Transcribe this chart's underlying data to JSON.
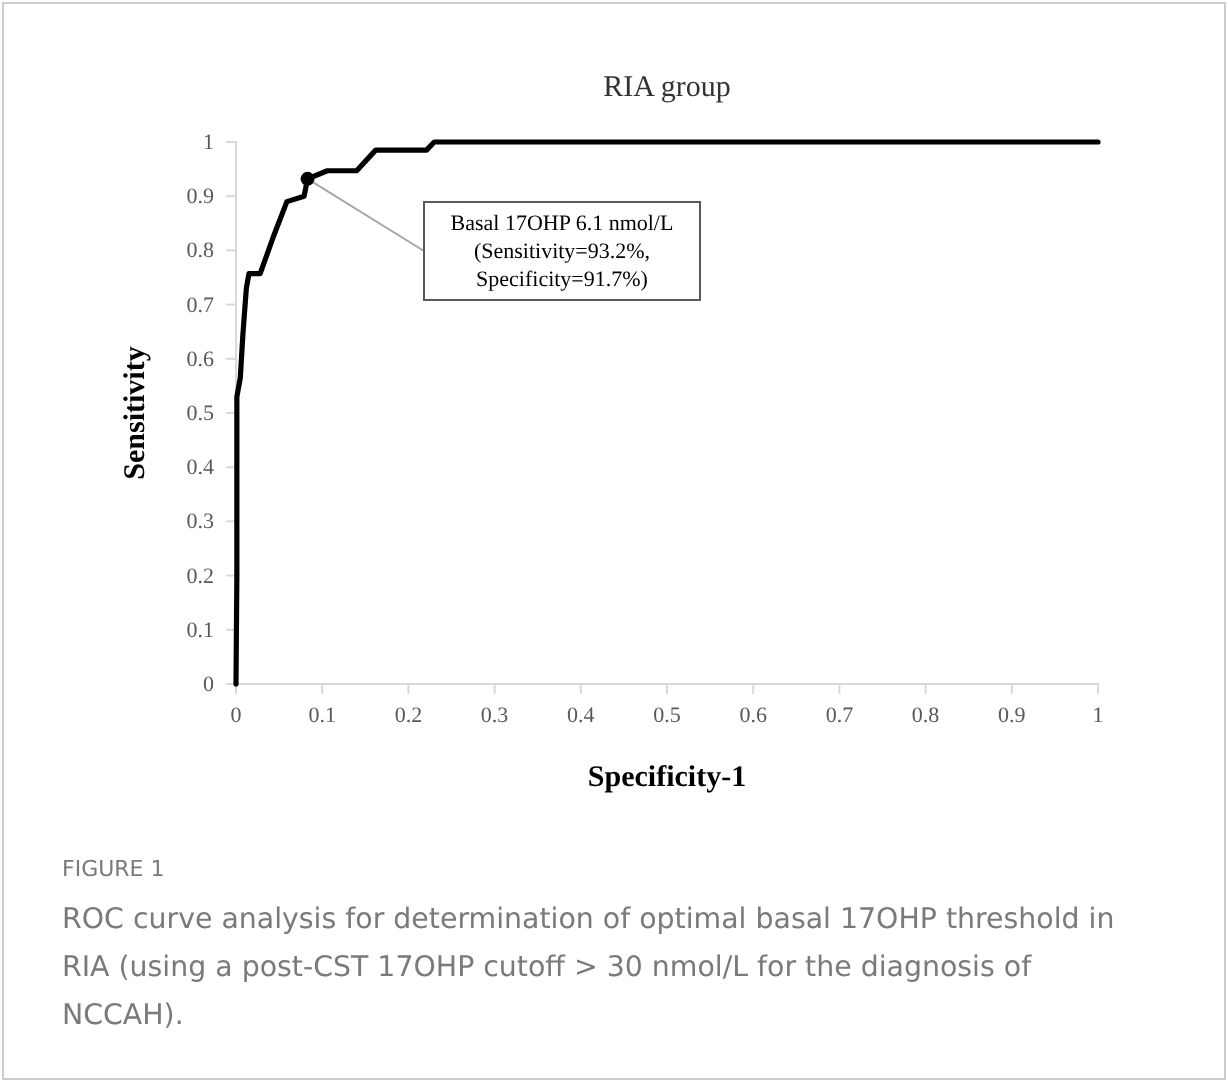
{
  "chart_data": {
    "type": "line",
    "title": "RIA group",
    "xlabel": "Specificity-1",
    "ylabel": "Sensitivity",
    "xlim": [
      0,
      1
    ],
    "xticks": [
      0,
      0.1,
      0.2,
      0.3,
      0.4,
      0.5,
      0.6,
      0.7,
      0.8,
      0.9,
      1
    ],
    "ylim": [
      0,
      1
    ],
    "yticks": [
      0,
      0.1,
      0.2,
      0.3,
      0.4,
      0.5,
      0.6,
      0.7,
      0.8,
      0.9,
      1
    ],
    "grid": false,
    "line_style": "solid",
    "series": [
      {
        "color": "#000000",
        "x": [
          0,
          0.001,
          0.001,
          0.005,
          0.008,
          0.012,
          0.015,
          0.028,
          0.044,
          0.059,
          0.079,
          0.083,
          0.106,
          0.14,
          0.162,
          0.221,
          0.23,
          1
        ],
        "values": [
          0,
          0.2,
          0.53,
          0.565,
          0.645,
          0.73,
          0.757,
          0.757,
          0.828,
          0.89,
          0.9,
          0.932,
          0.947,
          0.947,
          0.985,
          0.985,
          1,
          1
        ]
      },
      {
        "type": "scatter",
        "color": "#000000",
        "x": [
          0.083
        ],
        "values": [
          0.932
        ]
      }
    ],
    "annotations": [
      {
        "text": "Basal 17OHP 6.1 nmol/L\n(Sensitivity=93.2%,\nSpecificity=91.7%)",
        "x": 0.083,
        "y": 0.932
      },
      "FIGURE 1",
      "ROC curve analysis for determination of optimal basal 17OHP threshold in RIA (using a post-CST 17OHP cutoff > 30 nmol/L for the diagnosis of NCCAH)."
    ]
  }
}
